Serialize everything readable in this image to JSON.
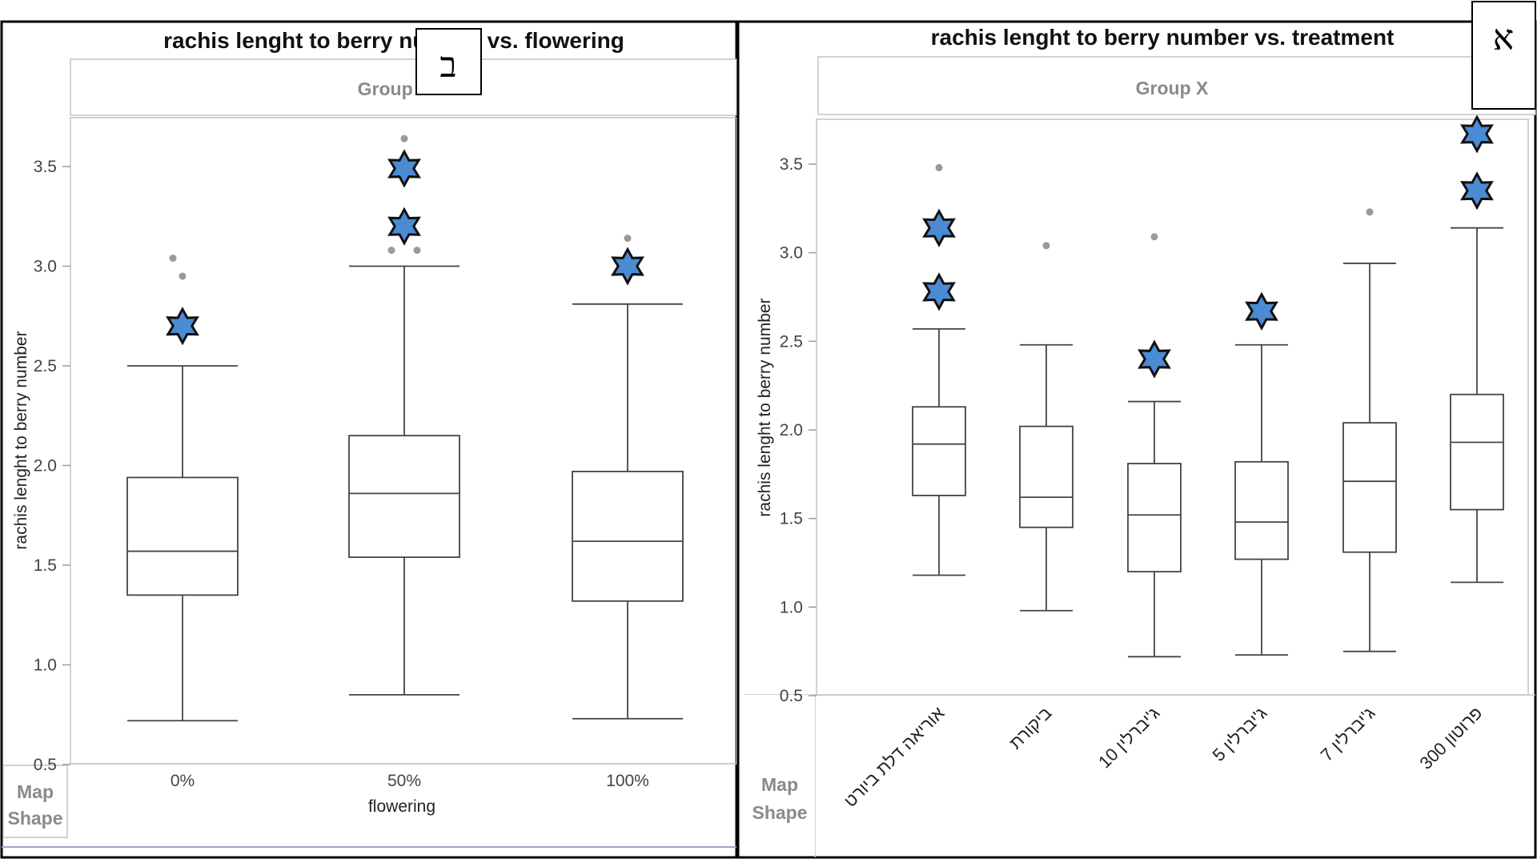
{
  "chart_data": [
    {
      "type": "box",
      "id": "left",
      "title": "rachis lenght to berry number vs. flowering",
      "group_label": "Group X",
      "panel_letter": "ב",
      "xlabel": "flowering",
      "ylabel": "rachis lenght to berry number",
      "ylim": [
        0.5,
        3.75
      ],
      "yticks": [
        0.5,
        1.0,
        1.5,
        2.0,
        2.5,
        3.0,
        3.5
      ],
      "ytick_labels": [
        "0.5",
        "1.0",
        "1.5",
        "2.0",
        "2.5",
        "3.0",
        "3.5"
      ],
      "map_shape": [
        "Map",
        "Shape"
      ],
      "categories": [
        "0%",
        "50%",
        "100%"
      ],
      "boxes": [
        {
          "min": 0.72,
          "q1": 1.35,
          "median": 1.57,
          "q3": 1.94,
          "max": 2.5,
          "outliers": [
            2.95,
            3.04
          ],
          "stars": [
            2.7
          ]
        },
        {
          "min": 0.85,
          "q1": 1.54,
          "median": 1.86,
          "q3": 2.15,
          "max": 3.0,
          "outliers": [
            3.08,
            3.08,
            3.64
          ],
          "stars": [
            3.2,
            3.49
          ]
        },
        {
          "min": 0.73,
          "q1": 1.32,
          "median": 1.62,
          "q3": 1.97,
          "max": 2.81,
          "outliers": [
            3.14
          ],
          "stars": [
            3.0
          ]
        }
      ]
    },
    {
      "type": "box",
      "id": "right",
      "title": "rachis lenght to berry number vs. treatment",
      "group_label": "Group X",
      "panel_letter": "א",
      "xlabel": "",
      "ylabel": "rachis lenght to berry number",
      "ylim": [
        0.5,
        3.75
      ],
      "yticks": [
        0.5,
        1.0,
        1.5,
        2.0,
        2.5,
        3.0,
        3.5
      ],
      "ytick_labels": [
        "0.5",
        "1.0",
        "1.5",
        "2.0",
        "2.5",
        "3.0",
        "3.5"
      ],
      "map_shape": [
        "Map",
        "Shape"
      ],
      "categories": [
        "אוריאה דלת ביורט",
        "ביקורת",
        "ג'יברלין 10",
        "ג'יברלין 5",
        "ג'יברלין 7",
        "פרוטון 300"
      ],
      "boxes": [
        {
          "min": 1.18,
          "q1": 1.63,
          "median": 1.92,
          "q3": 2.13,
          "max": 2.57,
          "outliers": [
            3.48
          ],
          "stars": [
            2.78,
            3.14
          ]
        },
        {
          "min": 0.98,
          "q1": 1.45,
          "median": 1.62,
          "q3": 2.02,
          "max": 2.48,
          "outliers": [
            3.04
          ],
          "stars": []
        },
        {
          "min": 0.72,
          "q1": 1.2,
          "median": 1.52,
          "q3": 1.81,
          "max": 2.16,
          "outliers": [
            3.09
          ],
          "stars": [
            2.4
          ]
        },
        {
          "min": 0.73,
          "q1": 1.27,
          "median": 1.48,
          "q3": 1.82,
          "max": 2.48,
          "outliers": [],
          "stars": [
            2.67
          ]
        },
        {
          "min": 0.75,
          "q1": 1.31,
          "median": 1.71,
          "q3": 2.04,
          "max": 2.94,
          "outliers": [
            3.23
          ],
          "stars": []
        },
        {
          "min": 1.14,
          "q1": 1.55,
          "median": 1.93,
          "q3": 2.2,
          "max": 3.14,
          "outliers": [],
          "stars": [
            3.35,
            3.67
          ]
        }
      ]
    }
  ],
  "colors": {
    "star_fill": "#4a8bd4",
    "star_stroke": "#111111",
    "outlier": "#9a9a9a",
    "frame": "#a8a8a8"
  }
}
